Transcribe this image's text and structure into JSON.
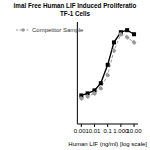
{
  "chart_data": {
    "type": "line",
    "title": "imal Free Human LIF Induced Proliferatio",
    "subtitle": "TF-1 Cells",
    "x_label": "Human LIF (ng/ml) [log scale]",
    "x": [
      0.001,
      0.003,
      0.01,
      0.03,
      0.1,
      0.3,
      1,
      3,
      10
    ],
    "series": [
      {
        "color": "#000000",
        "marker": "square",
        "line_style": "solid",
        "values": [
          28,
          30,
          33,
          40,
          58,
          80,
          90,
          92,
          88
        ]
      },
      {
        "name": "Competitor Sample",
        "color": "#999999",
        "marker": "circle",
        "line_style": "dashed",
        "values": [
          25,
          27,
          30,
          35,
          48,
          72,
          88,
          85,
          80
        ]
      }
    ],
    "log": "x",
    "xlim": [
      0.0005,
      20
    ],
    "xticks": [
      0.001,
      0.01,
      0.1,
      {
        "value": 1,
        "label": "1.000"
      },
      {
        "value": 10,
        "label": "10.00"
      }
    ],
    "ylim": [
      0,
      100
    ],
    "tick_labels": "x",
    "legend": "top left",
    "grid": false
  }
}
